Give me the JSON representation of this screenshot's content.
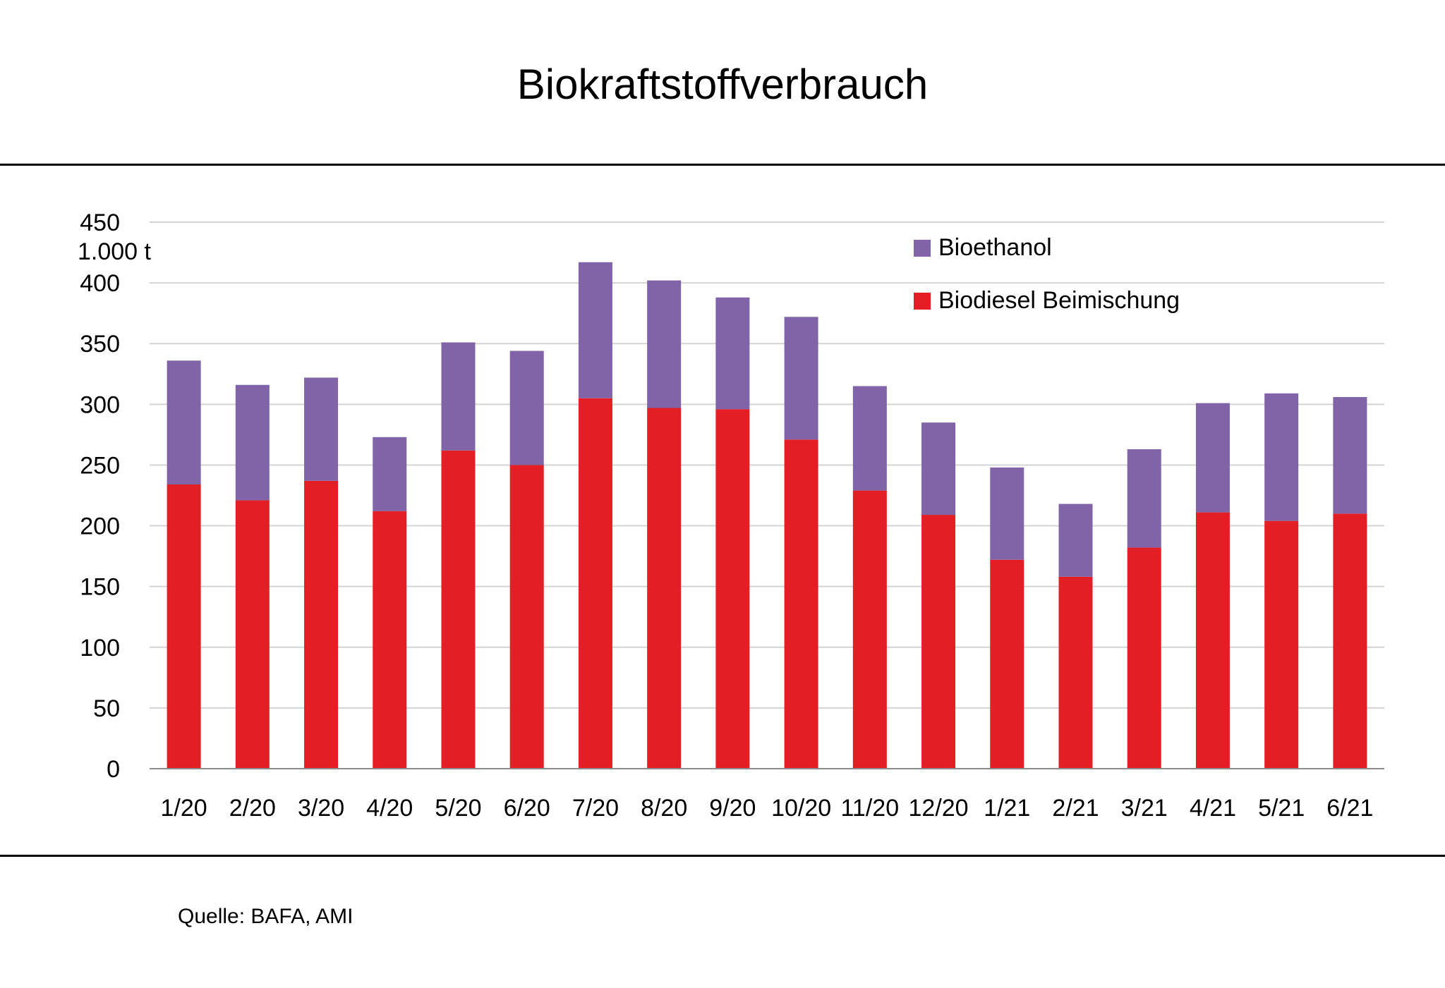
{
  "title": "Biokraftstoffverbrauch",
  "source": "Quelle: BAFA, AMI",
  "colors": {
    "bioethanol": "#8064a7",
    "biodiesel": "#e31e24",
    "grid": "#d4d4d4",
    "axis": "#8c8c8c"
  },
  "chart_data": {
    "type": "bar",
    "stacked": true,
    "title": "Biokraftstoffverbrauch",
    "unit_label": "1.000 t",
    "xlabel": "",
    "ylabel": "",
    "ylim": [
      0,
      450
    ],
    "yticks": [
      0,
      50,
      100,
      150,
      200,
      250,
      300,
      350,
      400,
      450
    ],
    "grid": true,
    "legend_position": "top-right",
    "categories": [
      "1/20",
      "2/20",
      "3/20",
      "4/20",
      "5/20",
      "6/20",
      "7/20",
      "8/20",
      "9/20",
      "10/20",
      "11/20",
      "12/20",
      "1/21",
      "2/21",
      "3/21",
      "4/21",
      "5/21",
      "6/21"
    ],
    "series": [
      {
        "name": "Biodiesel Beimischung",
        "color": "#e31e24",
        "values": [
          234,
          221,
          237,
          212,
          262,
          250,
          305,
          297,
          296,
          271,
          229,
          209,
          172,
          158,
          182,
          211,
          204,
          210
        ]
      },
      {
        "name": "Bioethanol",
        "color": "#8064a7",
        "values": [
          102,
          95,
          85,
          61,
          89,
          94,
          112,
          105,
          92,
          101,
          86,
          76,
          76,
          60,
          81,
          90,
          105,
          96
        ]
      }
    ],
    "legend_order": [
      "Bioethanol",
      "Biodiesel Beimischung"
    ]
  }
}
